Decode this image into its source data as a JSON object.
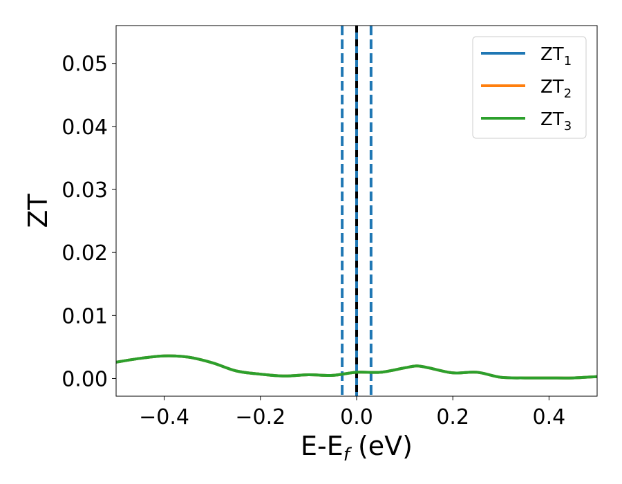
{
  "chart_data": {
    "type": "line",
    "xlabel": "E-E",
    "xlabel_sub": "f",
    "xlabel_unit": " (eV)",
    "ylabel": "ZT",
    "xlim": [
      -0.5,
      0.5
    ],
    "ylim": [
      -0.0028,
      0.056
    ],
    "xticks": [
      -0.4,
      -0.2,
      0.0,
      0.2,
      0.4
    ],
    "xtick_labels": [
      "−0.4",
      "−0.2",
      "0.0",
      "0.2",
      "0.4"
    ],
    "yticks": [
      0.0,
      0.01,
      0.02,
      0.03,
      0.04,
      0.05
    ],
    "ytick_labels": [
      "0.00",
      "0.01",
      "0.02",
      "0.03",
      "0.04",
      "0.05"
    ],
    "grid": false,
    "legend_position": "top-right",
    "series": [
      {
        "name": "ZT",
        "name_sub": "1",
        "color": "#1f77b4",
        "x": [
          -0.5,
          -0.45,
          -0.4,
          -0.35,
          -0.3,
          -0.25,
          -0.2,
          -0.15,
          -0.1,
          -0.05,
          0.0,
          0.05,
          0.1,
          0.125,
          0.15,
          0.2,
          0.25,
          0.3,
          0.35,
          0.4,
          0.45,
          0.5
        ],
        "y": [
          0.0026,
          0.0032,
          0.0036,
          0.0034,
          0.0025,
          0.0012,
          0.0007,
          0.0004,
          0.0006,
          0.0005,
          0.001,
          0.001,
          0.0017,
          0.002,
          0.0017,
          0.0009,
          0.001,
          0.0002,
          0.0001,
          0.0001,
          0.0001,
          0.0003
        ]
      },
      {
        "name": "ZT",
        "name_sub": "2",
        "color": "#ff7f0e",
        "x": [
          -0.5,
          -0.45,
          -0.4,
          -0.35,
          -0.3,
          -0.25,
          -0.2,
          -0.15,
          -0.1,
          -0.05,
          0.0,
          0.05,
          0.1,
          0.125,
          0.15,
          0.2,
          0.25,
          0.3,
          0.35,
          0.4,
          0.45,
          0.5
        ],
        "y": [
          0.0026,
          0.0032,
          0.0036,
          0.0034,
          0.0025,
          0.0012,
          0.0007,
          0.0004,
          0.0006,
          0.0005,
          0.001,
          0.001,
          0.0017,
          0.002,
          0.0017,
          0.0009,
          0.001,
          0.0002,
          0.0001,
          0.0001,
          0.0001,
          0.0003
        ]
      },
      {
        "name": "ZT",
        "name_sub": "3",
        "color": "#2ca02c",
        "x": [
          -0.5,
          -0.45,
          -0.4,
          -0.35,
          -0.3,
          -0.25,
          -0.2,
          -0.15,
          -0.1,
          -0.05,
          0.0,
          0.05,
          0.1,
          0.125,
          0.15,
          0.2,
          0.25,
          0.3,
          0.35,
          0.4,
          0.45,
          0.5
        ],
        "y": [
          0.0026,
          0.0032,
          0.0036,
          0.0034,
          0.0025,
          0.0012,
          0.0007,
          0.0004,
          0.0006,
          0.0005,
          0.001,
          0.001,
          0.0017,
          0.002,
          0.0017,
          0.0009,
          0.001,
          0.0002,
          0.0001,
          0.0001,
          0.0001,
          0.0003
        ]
      }
    ],
    "vlines": [
      {
        "x": -0.03,
        "style": "dashed",
        "color": "#1f77b4"
      },
      {
        "x": 0.0,
        "style": "solid",
        "color": "#000000"
      },
      {
        "x": 0.0,
        "style": "solid",
        "color": "#1f77b4"
      },
      {
        "x": 0.03,
        "style": "dashed",
        "color": "#1f77b4"
      }
    ]
  }
}
